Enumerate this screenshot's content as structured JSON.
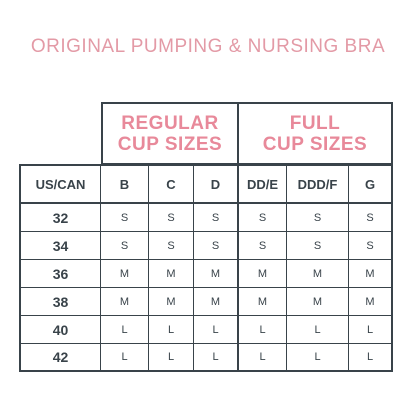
{
  "title": "ORIGINAL PUMPING & NURSING BRA",
  "groups": {
    "regular_line1": "REGULAR",
    "regular_line2": "CUP SIZES",
    "full_line1": "FULL",
    "full_line2": "CUP SIZES"
  },
  "headers": [
    "US/CAN",
    "B",
    "C",
    "D",
    "DD/E",
    "DDD/F",
    "G"
  ],
  "rows": [
    {
      "size": "32",
      "values": [
        "S",
        "S",
        "S",
        "S",
        "S",
        "S"
      ]
    },
    {
      "size": "34",
      "values": [
        "S",
        "S",
        "S",
        "S",
        "S",
        "S"
      ]
    },
    {
      "size": "36",
      "values": [
        "M",
        "M",
        "M",
        "M",
        "M",
        "M"
      ]
    },
    {
      "size": "38",
      "values": [
        "M",
        "M",
        "M",
        "M",
        "M",
        "M"
      ]
    },
    {
      "size": "40",
      "values": [
        "L",
        "L",
        "L",
        "L",
        "L",
        "L"
      ]
    },
    {
      "size": "42",
      "values": [
        "L",
        "L",
        "L",
        "L",
        "L",
        "L"
      ]
    }
  ]
}
